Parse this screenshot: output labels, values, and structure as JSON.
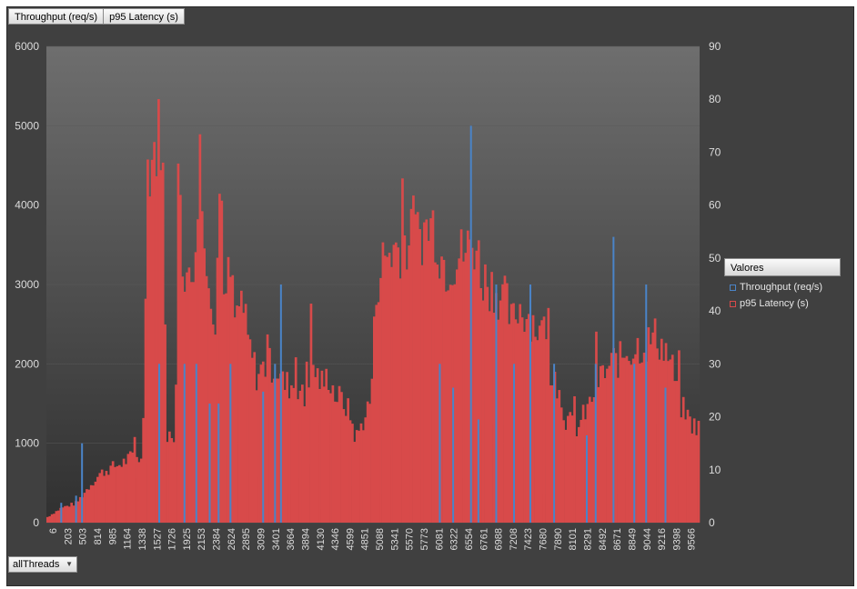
{
  "field_buttons": [
    "Throughput (req/s)",
    "p95 Latency  (s)"
  ],
  "filter": {
    "label": "allThreads",
    "caret": "▼"
  },
  "legend": {
    "title": "Valores",
    "items": [
      {
        "name": "Throughput (req/s)",
        "color": "#4a84c8"
      },
      {
        "name": "p95 Latency (s)",
        "color": "#d84a4a"
      }
    ]
  },
  "chart_data": {
    "type": "bar",
    "title": "",
    "y_left": {
      "label": "",
      "lim": [
        0,
        6000
      ],
      "ticks": [
        0,
        1000,
        2000,
        3000,
        4000,
        5000,
        6000
      ]
    },
    "y_right": {
      "label": "",
      "lim": [
        0,
        90
      ],
      "ticks": [
        0,
        10,
        20,
        30,
        40,
        50,
        60,
        70,
        80,
        90
      ]
    },
    "x_tick_labels": [
      "6",
      "203",
      "503",
      "814",
      "985",
      "1164",
      "1338",
      "1527",
      "1726",
      "1925",
      "2153",
      "2384",
      "2624",
      "2895",
      "3099",
      "3401",
      "3664",
      "3894",
      "4130",
      "4346",
      "4599",
      "4851",
      "5088",
      "5341",
      "5570",
      "5773",
      "6081",
      "6322",
      "6554",
      "6761",
      "6988",
      "7208",
      "7423",
      "7680",
      "7890",
      "8101",
      "8291",
      "8492",
      "8671",
      "8849",
      "9044",
      "9216",
      "9398",
      "9566"
    ],
    "series": [
      {
        "name": "Throughput (req/s)",
        "axis": "left",
        "color": "#4a84c8",
        "spikes": [
          [
            1,
            250
          ],
          [
            2,
            340
          ],
          [
            2.4,
            1000
          ],
          [
            7.6,
            2000
          ],
          [
            9.3,
            2000
          ],
          [
            10.1,
            2000
          ],
          [
            11.0,
            1500
          ],
          [
            11.6,
            1500
          ],
          [
            12.4,
            2000
          ],
          [
            14.6,
            1650
          ],
          [
            15.4,
            2000
          ],
          [
            15.8,
            3000
          ],
          [
            26.5,
            2000
          ],
          [
            27.4,
            1700
          ],
          [
            28.6,
            5000
          ],
          [
            29.1,
            1300
          ],
          [
            30.3,
            3000
          ],
          [
            31.5,
            2000
          ],
          [
            32.6,
            3000
          ],
          [
            34.2,
            2000
          ],
          [
            36.4,
            1100
          ],
          [
            37.0,
            2000
          ],
          [
            38.2,
            3600
          ],
          [
            39.6,
            2000
          ],
          [
            40.4,
            3000
          ],
          [
            41.7,
            1700
          ]
        ]
      },
      {
        "name": "p95 Latency (s)",
        "axis": "right",
        "color": "#d84a4a",
        "envelope": [
          [
            0,
            1
          ],
          [
            1,
            3
          ],
          [
            2,
            4
          ],
          [
            3,
            8
          ],
          [
            3.6,
            10
          ],
          [
            4.2,
            11
          ],
          [
            5.0,
            12
          ],
          [
            5.5,
            13
          ],
          [
            6.0,
            14
          ],
          [
            6.4,
            12
          ],
          [
            6.7,
            72
          ],
          [
            7.1,
            75
          ],
          [
            7.5,
            79
          ],
          [
            7.7,
            82
          ],
          [
            7.85,
            50
          ],
          [
            8.0,
            18
          ],
          [
            8.3,
            15
          ],
          [
            8.6,
            17
          ],
          [
            8.8,
            82
          ],
          [
            9.1,
            52
          ],
          [
            9.5,
            45
          ],
          [
            9.9,
            52
          ],
          [
            10.2,
            82
          ],
          [
            10.5,
            53
          ],
          [
            10.8,
            53
          ],
          [
            11.2,
            40
          ],
          [
            11.6,
            72
          ],
          [
            11.9,
            43
          ],
          [
            12.2,
            52
          ],
          [
            12.6,
            40
          ],
          [
            13.0,
            46
          ],
          [
            13.4,
            37
          ],
          [
            14.0,
            30
          ],
          [
            14.6,
            32
          ],
          [
            15.0,
            32
          ],
          [
            15.4,
            31
          ],
          [
            15.8,
            28
          ],
          [
            16.3,
            28
          ],
          [
            16.8,
            28
          ],
          [
            17.2,
            24
          ],
          [
            17.6,
            33
          ],
          [
            18.0,
            30
          ],
          [
            18.4,
            28
          ],
          [
            18.8,
            30
          ],
          [
            19.2,
            26
          ],
          [
            19.6,
            25
          ],
          [
            19.9,
            24
          ],
          [
            20.2,
            22
          ],
          [
            20.6,
            17
          ],
          [
            21.0,
            20
          ],
          [
            21.6,
            25
          ],
          [
            22.0,
            49
          ],
          [
            22.4,
            53
          ],
          [
            22.8,
            55
          ],
          [
            23.4,
            56
          ],
          [
            24.0,
            57
          ],
          [
            24.6,
            58
          ],
          [
            25.0,
            59
          ],
          [
            25.4,
            60
          ],
          [
            25.8,
            61
          ],
          [
            26.2,
            55
          ],
          [
            26.6,
            52
          ],
          [
            27.0,
            53
          ],
          [
            27.4,
            54
          ],
          [
            27.8,
            55
          ],
          [
            28.2,
            56
          ],
          [
            28.6,
            57
          ],
          [
            29.0,
            50
          ],
          [
            29.4,
            49
          ],
          [
            29.8,
            48
          ],
          [
            30.2,
            46
          ],
          [
            30.6,
            45
          ],
          [
            31.0,
            40
          ],
          [
            31.4,
            44
          ],
          [
            31.8,
            43
          ],
          [
            32.2,
            42
          ],
          [
            32.6,
            40
          ],
          [
            33.0,
            38
          ],
          [
            33.4,
            34
          ],
          [
            33.8,
            28
          ],
          [
            34.2,
            26
          ],
          [
            34.6,
            21
          ],
          [
            35.0,
            20
          ],
          [
            35.4,
            19
          ],
          [
            35.8,
            22
          ],
          [
            36.2,
            24
          ],
          [
            36.6,
            28
          ],
          [
            37.0,
            30
          ],
          [
            37.4,
            31
          ],
          [
            37.8,
            33
          ],
          [
            38.2,
            33
          ],
          [
            38.6,
            35
          ],
          [
            39.0,
            35
          ],
          [
            39.4,
            36
          ],
          [
            39.8,
            36
          ],
          [
            40.2,
            37
          ],
          [
            40.6,
            38
          ],
          [
            41.0,
            36
          ],
          [
            41.4,
            34
          ],
          [
            41.8,
            30
          ],
          [
            42.2,
            24
          ],
          [
            42.6,
            22
          ],
          [
            43.0,
            20
          ],
          [
            43.6,
            19
          ],
          [
            44.0,
            17
          ]
        ]
      }
    ]
  }
}
